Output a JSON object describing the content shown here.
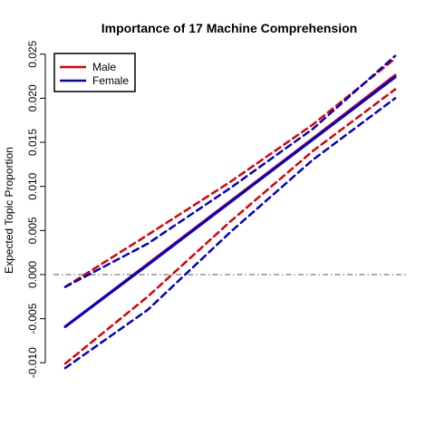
{
  "chart_data": {
    "type": "line",
    "title": "Importance of 17 Machine Comprehension",
    "xlabel": "",
    "ylabel": "Expected Topic Proportion",
    "x_range": [
      0,
      1
    ],
    "ylim": [
      -0.011,
      0.026
    ],
    "y_ticks": [
      -0.01,
      -0.005,
      0.0,
      0.005,
      0.01,
      0.015,
      0.02,
      0.025
    ],
    "y_tick_labels": [
      "-0.010",
      "-0.005",
      "0.000",
      "0.005",
      "0.010",
      "0.015",
      "0.020",
      "0.025"
    ],
    "reference_line": {
      "y": 0.0,
      "style": "dash-dot",
      "color": "#555555"
    },
    "legend": {
      "placement": "top-left",
      "entries": [
        "Male",
        "Female"
      ]
    },
    "series": [
      {
        "name": "Male",
        "color": "#dd0000",
        "role": "estimate",
        "x": [
          0,
          0.25,
          0.5,
          0.75,
          1
        ],
        "y": [
          -0.0059,
          0.0012,
          0.0083,
          0.0154,
          0.0226
        ]
      },
      {
        "name": "Male",
        "color": "#dd0000",
        "role": "ci-upper",
        "x": [
          0,
          0.25,
          0.5,
          0.75,
          1
        ],
        "y": [
          -0.0014,
          0.0045,
          0.0105,
          0.017,
          0.0245
        ]
      },
      {
        "name": "Male",
        "color": "#dd0000",
        "role": "ci-lower",
        "x": [
          0,
          0.25,
          0.5,
          0.75,
          1
        ],
        "y": [
          -0.0101,
          -0.0025,
          0.006,
          0.014,
          0.021
        ]
      },
      {
        "name": "Female",
        "color": "#0000cc",
        "role": "estimate",
        "x": [
          0,
          0.25,
          0.5,
          0.75,
          1
        ],
        "y": [
          -0.0059,
          0.0011,
          0.0082,
          0.0153,
          0.0224
        ]
      },
      {
        "name": "Female",
        "color": "#0000cc",
        "role": "ci-upper",
        "x": [
          0,
          0.25,
          0.5,
          0.75,
          1
        ],
        "y": [
          -0.0014,
          0.0035,
          0.0098,
          0.0165,
          0.0248
        ]
      },
      {
        "name": "Female",
        "color": "#0000cc",
        "role": "ci-lower",
        "x": [
          0,
          0.25,
          0.5,
          0.75,
          1
        ],
        "y": [
          -0.0106,
          -0.004,
          0.0048,
          0.013,
          0.02
        ]
      }
    ]
  }
}
